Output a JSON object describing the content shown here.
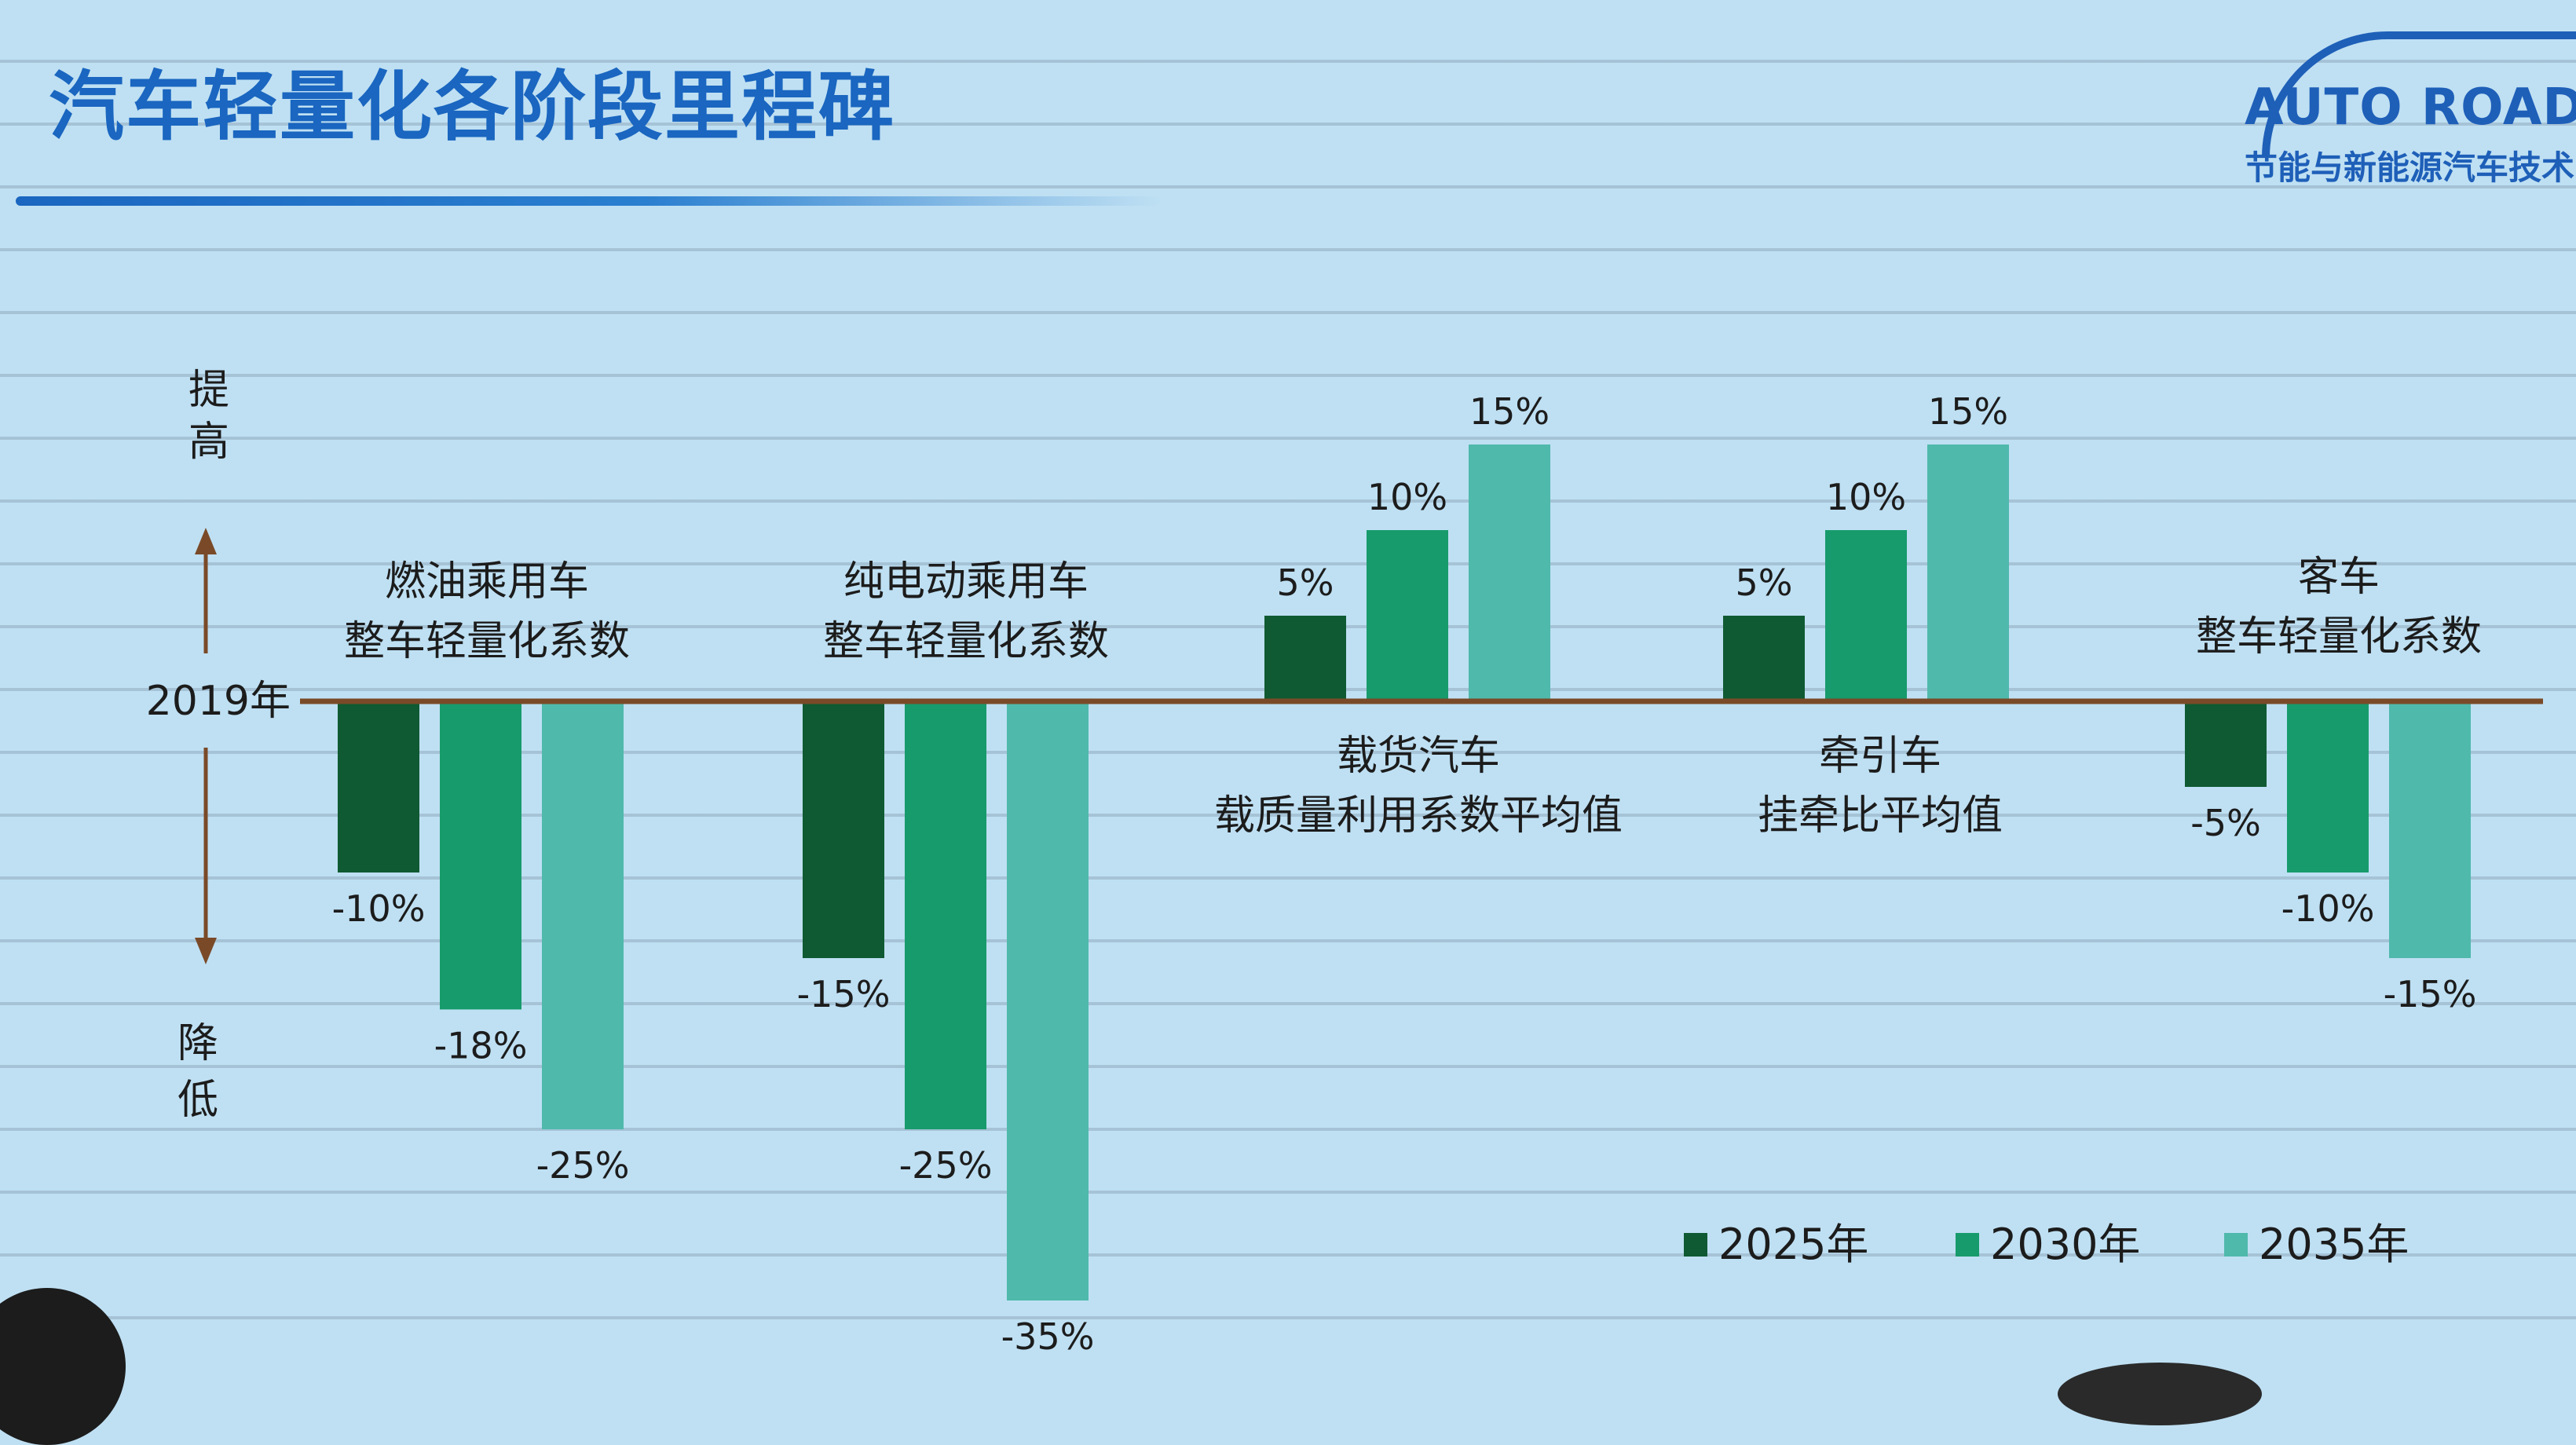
{
  "slide": {
    "title": "汽车轻量化各阶段里程碑",
    "logo_name": "AUTO ROAD",
    "logo_sub": "节能与新能源汽车技术",
    "colors": {
      "title": "#1a66c0",
      "baseline": "#7a4a28",
      "background": "#bfe0f3"
    }
  },
  "chart_data": {
    "type": "bar",
    "baseline_label": "2019年",
    "up_label": "提高",
    "down_label": "降低",
    "categories": [
      "燃油乘用车\n整车轻量化系数",
      "纯电动乘用车\n整车轻量化系数",
      "载货汽车\n载质量利用系数平均值",
      "牵引车\n挂牵比平均值",
      "客车\n整车轻量化系数"
    ],
    "series": [
      {
        "name": "2025年",
        "color": "#0f5a32",
        "values": [
          -10,
          -15,
          5,
          5,
          -5
        ],
        "labels": [
          "-10%",
          "-15%",
          "5%",
          "5%",
          "-5%"
        ]
      },
      {
        "name": "2030年",
        "color": "#179b6c",
        "values": [
          -18,
          -25,
          10,
          10,
          -10
        ],
        "labels": [
          "-18%",
          "-25%",
          "10%",
          "10%",
          "-10%"
        ]
      },
      {
        "name": "2035年",
        "color": "#4fb9ac",
        "values": [
          -25,
          -35,
          15,
          15,
          -15
        ],
        "labels": [
          "-25%",
          "-35%",
          "15%",
          "15%",
          "-15%"
        ]
      }
    ],
    "ylim": [
      -35,
      15
    ],
    "legend_position": "bottom-right"
  }
}
